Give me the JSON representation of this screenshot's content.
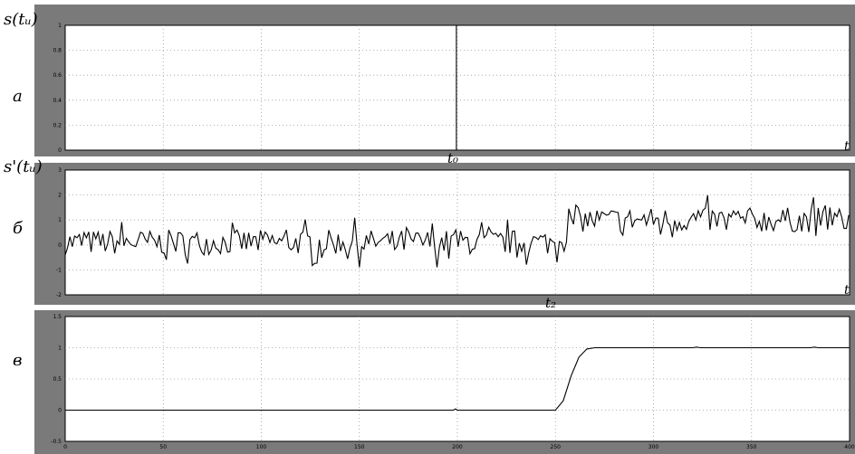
{
  "chart_data": [
    {
      "type": "line",
      "panel_label": "a",
      "ylabel": "s(tᵤ)",
      "marker_label": "t₀",
      "ylim": [
        0,
        1
      ],
      "yticks": [
        "0",
        "0.2",
        "0.4",
        "0.6",
        "0.8",
        "1"
      ],
      "xlim": [
        0,
        400
      ],
      "x_end_label": "t",
      "grid": true,
      "series": [
        {
          "x": [
            0,
            199.5,
            199.5,
            400
          ],
          "y": [
            0,
            0,
            1,
            1
          ]
        }
      ]
    },
    {
      "type": "line",
      "panel_label": "б",
      "ylabel": "s'(tᵤ)",
      "marker_label": "t₂",
      "ylim": [
        -2,
        3
      ],
      "yticks": [
        "-2",
        "-1",
        "0",
        "1",
        "2",
        "3"
      ],
      "xlim": [
        0,
        400
      ],
      "x_end_label": "t",
      "grid": true,
      "series": [
        {
          "description": "noisy signal, mean ~0 before x≈250, mean ~1 after",
          "pre_mean": 0.1,
          "post_mean": 1.0,
          "change_x": 250,
          "noise_amplitude": 0.5
        }
      ]
    },
    {
      "type": "line",
      "panel_label": "в",
      "ylim": [
        -0.5,
        1.5
      ],
      "yticks": [
        "-0.5",
        "0",
        "0.5",
        "1",
        "1.5"
      ],
      "xlim": [
        0,
        400
      ],
      "xticks": [
        "0",
        "50",
        "100",
        "150",
        "200",
        "250",
        "300",
        "350",
        "400"
      ],
      "grid": true,
      "series": [
        {
          "x": [
            0,
            198,
            199,
            200,
            250,
            254,
            258,
            262,
            266,
            270,
            320,
            322,
            324,
            380,
            382,
            384,
            400
          ],
          "y": [
            0,
            0,
            0.02,
            0,
            0,
            0.15,
            0.55,
            0.85,
            0.98,
            1,
            1,
            1.01,
            1,
            1,
            1.01,
            1,
            1
          ]
        }
      ]
    }
  ]
}
